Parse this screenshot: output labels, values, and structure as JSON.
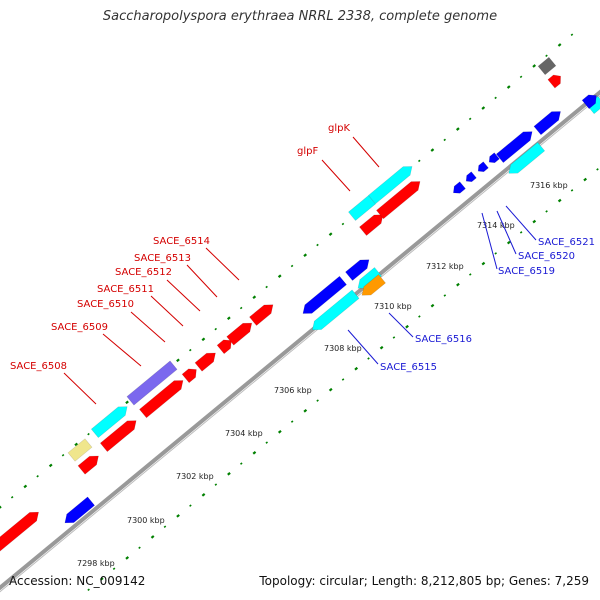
{
  "title": "Saccharopolyspora erythraea NRRL 2338, complete genome",
  "accession": "Accession: NC_009142",
  "topology": "Topology: circular; Length: 8,212,805 bp; Genes: 7,259",
  "ticks": [
    "7298 kbp",
    "7300 kbp",
    "7302 kbp",
    "7304 kbp",
    "7306 kbp",
    "7308 kbp",
    "7310 kbp",
    "7312 kbp",
    "7314 kbp",
    "7316 kbp"
  ],
  "labels_forward": [
    "SACE_6508",
    "SACE_6509",
    "SACE_6510",
    "SACE_6511",
    "SACE_6512",
    "SACE_6513",
    "SACE_6514",
    "glpF",
    "glpK"
  ],
  "labels_reverse": [
    "SACE_6515",
    "SACE_6516",
    "SACE_6519",
    "SACE_6520",
    "SACE_6521"
  ],
  "colors": {
    "cds": "#ff0000",
    "gene": "#0000ff",
    "rrna": "#00ffff",
    "other": "#7b68ee",
    "misc": "#f0e68c",
    "orange": "#ff9900",
    "grey": "#666666",
    "backbone": "#999999",
    "tick": "#008000"
  }
}
